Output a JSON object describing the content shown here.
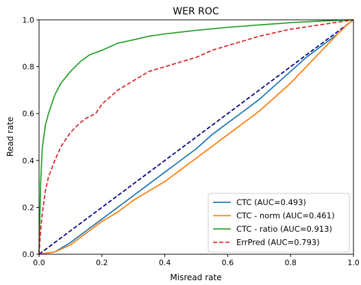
{
  "chart_data": {
    "type": "line",
    "title": "WER ROC",
    "xlabel": "Misread rate",
    "ylabel": "Read rate",
    "xlim": [
      0.0,
      1.0
    ],
    "ylim": [
      0.0,
      1.0
    ],
    "xticks": [
      "0.0",
      "0.2",
      "0.4",
      "0.6",
      "0.8",
      "1.0"
    ],
    "yticks": [
      "0.0",
      "0.2",
      "0.4",
      "0.6",
      "0.8",
      "1.0"
    ],
    "grid": false,
    "legend_position": "bottom-right",
    "series": [
      {
        "name": "CTC (AUC=0.493)",
        "color": "#1f77b4",
        "style": "solid",
        "x": [
          0.0,
          0.05,
          0.1,
          0.15,
          0.2,
          0.25,
          0.3,
          0.35,
          0.4,
          0.45,
          0.5,
          0.55,
          0.6,
          0.65,
          0.7,
          0.75,
          0.8,
          0.85,
          0.9,
          0.95,
          0.98,
          1.0
        ],
        "y": [
          0.0,
          0.01,
          0.05,
          0.1,
          0.15,
          0.2,
          0.25,
          0.3,
          0.35,
          0.4,
          0.45,
          0.51,
          0.56,
          0.61,
          0.66,
          0.72,
          0.78,
          0.84,
          0.89,
          0.94,
          0.98,
          1.0
        ]
      },
      {
        "name": "CTC - norm (AUC=0.461)",
        "color": "#ff7f0e",
        "style": "solid",
        "x": [
          0.0,
          0.05,
          0.1,
          0.15,
          0.2,
          0.25,
          0.3,
          0.35,
          0.4,
          0.45,
          0.5,
          0.55,
          0.6,
          0.65,
          0.7,
          0.75,
          0.8,
          0.85,
          0.9,
          0.95,
          0.98,
          1.0
        ],
        "y": [
          0.0,
          0.01,
          0.04,
          0.09,
          0.14,
          0.18,
          0.23,
          0.27,
          0.31,
          0.36,
          0.41,
          0.46,
          0.51,
          0.56,
          0.61,
          0.67,
          0.73,
          0.8,
          0.87,
          0.94,
          0.98,
          1.0
        ]
      },
      {
        "name": "CTC - ratio (AUC=0.913)",
        "color": "#2ca02c",
        "style": "solid",
        "x": [
          0.0,
          0.005,
          0.01,
          0.02,
          0.03,
          0.05,
          0.07,
          0.1,
          0.13,
          0.16,
          0.2,
          0.25,
          0.3,
          0.35,
          0.4,
          0.5,
          0.6,
          0.7,
          0.8,
          0.9,
          1.0
        ],
        "y": [
          0.0,
          0.3,
          0.45,
          0.55,
          0.6,
          0.68,
          0.73,
          0.78,
          0.82,
          0.85,
          0.87,
          0.9,
          0.915,
          0.93,
          0.94,
          0.955,
          0.968,
          0.978,
          0.988,
          0.995,
          1.0
        ]
      },
      {
        "name": "ErrPred (AUC=0.793)",
        "color": "#d62728",
        "style": "dashed",
        "x": [
          0.0,
          0.005,
          0.01,
          0.02,
          0.03,
          0.05,
          0.07,
          0.1,
          0.13,
          0.15,
          0.18,
          0.2,
          0.25,
          0.3,
          0.35,
          0.4,
          0.45,
          0.5,
          0.55,
          0.6,
          0.65,
          0.7,
          0.8,
          0.9,
          0.95,
          1.0
        ],
        "y": [
          0.0,
          0.1,
          0.17,
          0.27,
          0.33,
          0.4,
          0.46,
          0.52,
          0.56,
          0.58,
          0.6,
          0.64,
          0.7,
          0.74,
          0.78,
          0.8,
          0.82,
          0.84,
          0.87,
          0.89,
          0.91,
          0.93,
          0.96,
          0.98,
          0.99,
          1.0
        ]
      },
      {
        "name": "",
        "color": "#000080",
        "style": "dashed",
        "x": [
          0.0,
          1.0
        ],
        "y": [
          0.0,
          1.0
        ]
      }
    ]
  }
}
